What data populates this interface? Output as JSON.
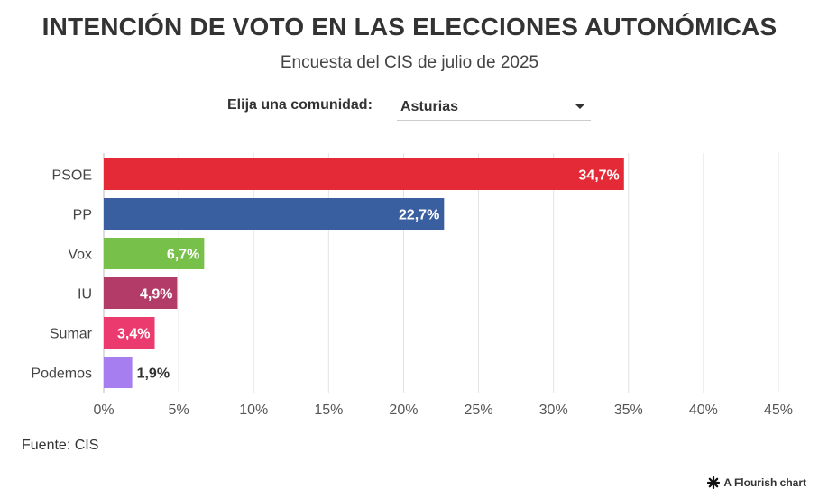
{
  "header": {
    "title": "INTENCIÓN DE VOTO EN LAS ELECCIONES AUTONÓMICAS",
    "subtitle": "Encuesta del CIS de julio de 2025"
  },
  "selector": {
    "label": "Elija una comunidad:",
    "selected": "Asturias"
  },
  "footer": {
    "source": "Fuente: CIS",
    "credit": "A Flourish chart"
  },
  "chart_data": {
    "type": "bar",
    "orientation": "horizontal",
    "title": "INTENCIÓN DE VOTO EN LAS ELECCIONES AUTONÓMICAS",
    "subtitle": "Encuesta del CIS de julio de 2025",
    "categories": [
      "PSOE",
      "PP",
      "Vox",
      "IU",
      "Sumar",
      "Podemos"
    ],
    "values": [
      34.7,
      22.7,
      6.7,
      4.9,
      3.4,
      1.9
    ],
    "value_labels": [
      "34,7%",
      "22,7%",
      "6,7%",
      "4,9%",
      "3,4%",
      "1,9%"
    ],
    "colors": [
      "#e32a36",
      "#3a5fa0",
      "#77c04a",
      "#b23c67",
      "#eb3a6e",
      "#a67ef0"
    ],
    "xlim": [
      0,
      45
    ],
    "xticks": [
      0,
      5,
      10,
      15,
      20,
      25,
      30,
      35,
      40,
      45
    ],
    "xtick_labels": [
      "0%",
      "5%",
      "10%",
      "15%",
      "20%",
      "25%",
      "30%",
      "35%",
      "40%",
      "45%"
    ],
    "xlabel": "",
    "ylabel": "",
    "grid": true
  }
}
